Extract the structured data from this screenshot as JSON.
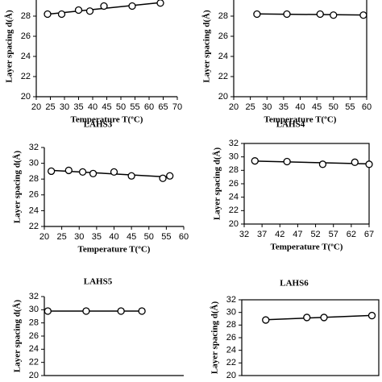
{
  "chart_data": [
    {
      "type": "scatter",
      "x_label": "Temperature T(ºC)",
      "y_label": "Layer spacing d(Å)",
      "x": [
        24,
        29,
        35,
        39,
        44,
        54,
        64
      ],
      "values": [
        28.2,
        28.2,
        28.6,
        28.5,
        29.0,
        29.0,
        29.3
      ],
      "xlim": [
        20,
        70
      ],
      "xticks": [
        20,
        25,
        30,
        35,
        40,
        45,
        50,
        55,
        60,
        65,
        70
      ],
      "ylim": [
        20,
        30
      ],
      "yticks": [
        20,
        22,
        24,
        26,
        28
      ],
      "trendline": true
    },
    {
      "type": "scatter",
      "x_label": "Temperature T(ºC)",
      "y_label": "Layer spacing d(Å)",
      "x": [
        27,
        36,
        46,
        50,
        59
      ],
      "values": [
        28.2,
        28.2,
        28.2,
        28.1,
        28.1
      ],
      "xlim": [
        20,
        60
      ],
      "xticks": [
        20,
        25,
        30,
        35,
        40,
        45,
        50,
        55,
        60
      ],
      "ylim": [
        20,
        30
      ],
      "yticks": [
        20,
        22,
        24,
        26,
        28
      ],
      "trendline": true
    },
    {
      "type": "scatter",
      "title": "LAHS3",
      "x_label": "Temperature T(ºC)",
      "y_label": "Layer spacing d(Å)",
      "x": [
        22,
        27,
        31,
        34,
        40,
        45,
        54,
        56
      ],
      "values": [
        29.0,
        29.1,
        28.9,
        28.7,
        28.9,
        28.4,
        28.1,
        28.4
      ],
      "xlim": [
        20,
        60
      ],
      "xticks": [
        20,
        25,
        30,
        35,
        40,
        45,
        50,
        55,
        60
      ],
      "ylim": [
        22,
        32
      ],
      "yticks": [
        22,
        24,
        26,
        28,
        30,
        32
      ],
      "trendline": true
    },
    {
      "type": "scatter",
      "title": "LAHS4",
      "x_label": "Temperature T(ºC)",
      "y_label": "Layer spacing d(Å)",
      "x": [
        35,
        44,
        54,
        63,
        67
      ],
      "values": [
        29.4,
        29.3,
        28.9,
        29.2,
        28.9
      ],
      "xlim": [
        32,
        67
      ],
      "xticks": [
        32,
        37,
        42,
        47,
        52,
        57,
        62,
        67
      ],
      "ylim": [
        20,
        32
      ],
      "yticks": [
        20,
        22,
        24,
        26,
        28,
        30,
        32
      ],
      "trendline": true
    },
    {
      "type": "scatter",
      "title": "LAHS5",
      "y_label": "Layer spacing d(Å)",
      "x": [
        21,
        32,
        42,
        48
      ],
      "values": [
        29.8,
        29.8,
        29.8,
        29.8
      ],
      "xlim": [
        20,
        60
      ],
      "ylim": [
        20,
        32
      ],
      "yticks": [
        20,
        22,
        24,
        26,
        28,
        30,
        32
      ],
      "trendline": true
    },
    {
      "type": "scatter",
      "title": "LAHS6",
      "y_label": "Layer spacing d(Å)",
      "x": [
        27,
        39,
        44,
        58
      ],
      "values": [
        28.8,
        29.2,
        29.2,
        29.5
      ],
      "xlim": [
        20,
        60
      ],
      "ylim": [
        20,
        32
      ],
      "yticks": [
        20,
        22,
        24,
        26,
        28,
        30,
        32
      ],
      "trendline": true
    }
  ]
}
